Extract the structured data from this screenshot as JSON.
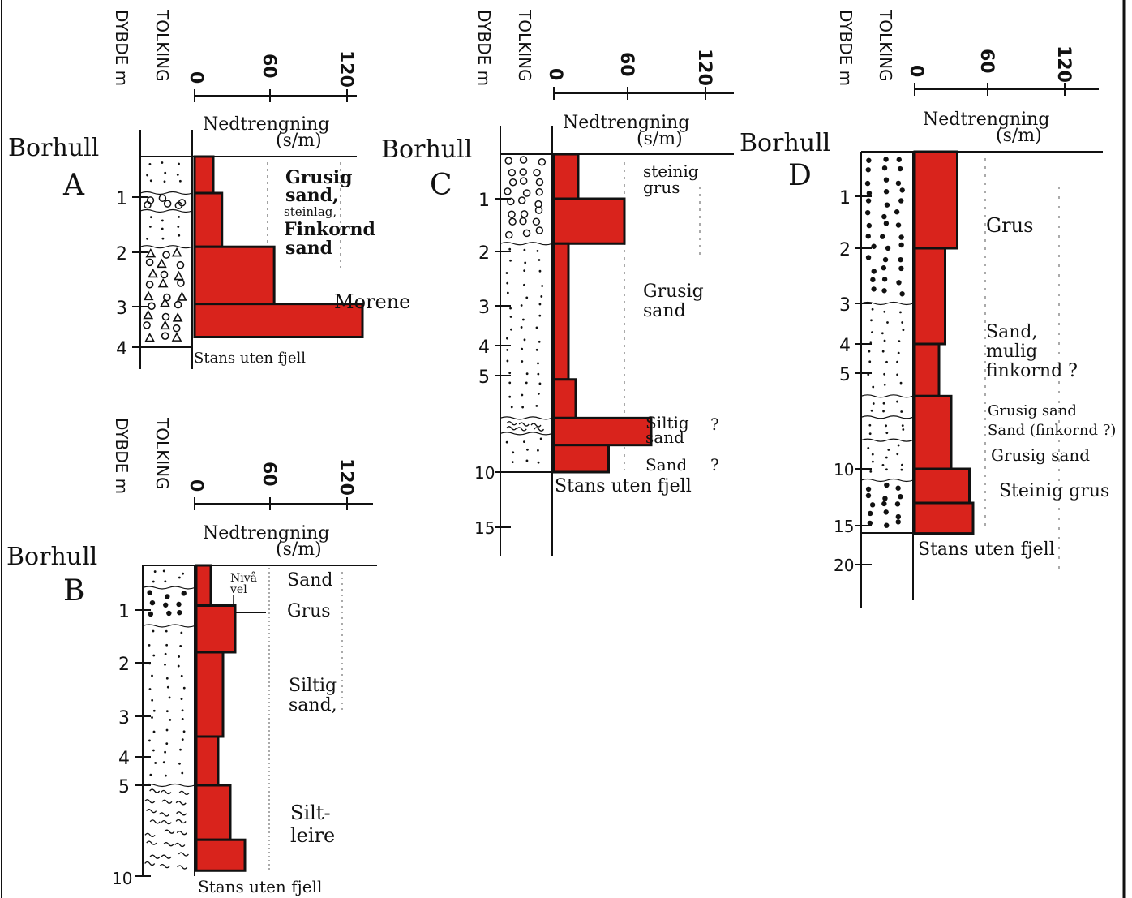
{
  "colors": {
    "ink": "#111111",
    "red": "#d9231c",
    "paper": "#ffffff"
  },
  "common": {
    "col_depth": "DYBDE m",
    "col_interp": "TOLKING",
    "ticks": [
      "0",
      "60",
      "120"
    ],
    "pen_title": "Nedtrengning",
    "pen_unit": "(s/m)",
    "hole_label": "Borhull"
  },
  "holes": [
    {
      "id": "A",
      "depth_ticks": [
        "1",
        "2",
        "3",
        "4"
      ],
      "max_depth": 4,
      "layers": [
        {
          "label": "Grusig sand",
          "pattern": "dots",
          "top": 0,
          "bottom": 0.9
        },
        {
          "label": "steinlag",
          "pattern": "stones",
          "top": 0.9,
          "bottom": 1.25
        },
        {
          "label": "Finkornd sand",
          "pattern": "dots",
          "top": 1.25,
          "bottom": 1.9
        },
        {
          "label": "Morene",
          "pattern": "moraine",
          "top": 1.9,
          "bottom": 4
        }
      ],
      "soundings": [
        {
          "d0": 0,
          "d1": 0.9,
          "v": 15
        },
        {
          "d0": 0.9,
          "d1": 1.9,
          "v": 22
        },
        {
          "d0": 1.9,
          "d1": 2.95,
          "v": 64
        },
        {
          "d0": 2.95,
          "d1": 3.75,
          "v": 135
        }
      ],
      "stop": "Stans uten fjell"
    },
    {
      "id": "B",
      "depth_ticks": [
        "1",
        "2",
        "3",
        "4",
        "5",
        "10"
      ],
      "max_depth": 10,
      "layers": [
        {
          "label": "Sand",
          "pattern": "dots",
          "top": 0,
          "bottom": 0.5
        },
        {
          "label": "Grus",
          "pattern": "gravel",
          "top": 0.5,
          "bottom": 1.3
        },
        {
          "label": "Siltig sand",
          "pattern": "dots",
          "top": 1.3,
          "bottom": 5
        },
        {
          "label": "Silt-leire",
          "pattern": "silt",
          "top": 5,
          "bottom": 10
        }
      ],
      "water": {
        "label": "Nivå vel",
        "depth": 0.85
      },
      "soundings": [
        {
          "d0": 0,
          "d1": 0.9,
          "v": 12
        },
        {
          "d0": 0.9,
          "d1": 1.8,
          "v": 32
        },
        {
          "d0": 1.8,
          "d1": 3.5,
          "v": 22
        },
        {
          "d0": 3.5,
          "d1": 5,
          "v": 18
        },
        {
          "d0": 5,
          "d1": 8,
          "v": 28
        },
        {
          "d0": 8,
          "d1": 9.7,
          "v": 40
        }
      ],
      "stop": "Stans uten fjell"
    },
    {
      "id": "C",
      "depth_ticks": [
        "1",
        "2",
        "3",
        "4",
        "5",
        "10",
        "15"
      ],
      "max_depth": 15,
      "layers": [
        {
          "label": "steinig grus",
          "pattern": "stones",
          "top": 0,
          "bottom": 1.85
        },
        {
          "label": "Grusig sand",
          "pattern": "dots",
          "top": 1.85,
          "bottom": 7.2
        },
        {
          "label": "Siltig sand ?",
          "pattern": "silt",
          "top": 7.2,
          "bottom": 8
        },
        {
          "label": "Sand ?",
          "pattern": "dots",
          "top": 8,
          "bottom": 10
        }
      ],
      "soundings": [
        {
          "d0": 0,
          "d1": 1.0,
          "v": 20
        },
        {
          "d0": 1.0,
          "d1": 1.85,
          "v": 58
        },
        {
          "d0": 1.85,
          "d1": 5.2,
          "v": 12
        },
        {
          "d0": 5.2,
          "d1": 7.2,
          "v": 18
        },
        {
          "d0": 7.2,
          "d1": 8.6,
          "v": 80
        },
        {
          "d0": 8.6,
          "d1": 10,
          "v": 45
        }
      ],
      "stop": "Stans uten fjell"
    },
    {
      "id": "D",
      "depth_ticks": [
        "1",
        "2",
        "3",
        "4",
        "5",
        "10",
        "15",
        "20"
      ],
      "max_depth": 20,
      "layers": [
        {
          "label": "Grus",
          "pattern": "gravel",
          "top": 0,
          "bottom": 3
        },
        {
          "label": "Sand, mulig finkornd ?",
          "pattern": "dots",
          "top": 3,
          "bottom": 6.2
        },
        {
          "label": "Grusig sand",
          "pattern": "dots",
          "top": 6.2,
          "bottom": 7.3
        },
        {
          "label": "Sand (finkornd ?)",
          "pattern": "dots",
          "top": 7.3,
          "bottom": 8.5
        },
        {
          "label": "Grusig sand",
          "pattern": "dots",
          "top": 8.5,
          "bottom": 11
        },
        {
          "label": "Steinig grus",
          "pattern": "gravel",
          "top": 11,
          "bottom": 16
        }
      ],
      "soundings": [
        {
          "d0": 0,
          "d1": 2,
          "v": 35
        },
        {
          "d0": 2,
          "d1": 4,
          "v": 25
        },
        {
          "d0": 4,
          "d1": 6.2,
          "v": 20
        },
        {
          "d0": 6.2,
          "d1": 10,
          "v": 30
        },
        {
          "d0": 10,
          "d1": 13,
          "v": 45
        },
        {
          "d0": 13,
          "d1": 16,
          "v": 48
        }
      ],
      "stop": "Stans uten fjell"
    }
  ],
  "labels": {
    "A": {
      "l1": "Grusig",
      "l2": "sand,",
      "l3": "steinlag,",
      "l4": "Finkornd",
      "l5": "sand",
      "l6": "Morene"
    },
    "B": {
      "l1": "Sand",
      "l2": "Grus",
      "l3": "Siltig",
      "l4": "sand,",
      "l5": "Silt-",
      "l6": "leire",
      "n1": "Nivå",
      "n2": "vel"
    },
    "C": {
      "l1": "steinig",
      "l2": "grus",
      "l3": "Grusig",
      "l4": "sand",
      "l5": "Siltig",
      "l6": "sand",
      "l7": "Sand",
      "q": "?"
    },
    "D": {
      "l1": "Grus",
      "l2": "Sand,",
      "l3": "mulig",
      "l4": "finkornd ?",
      "l5": "Grusig sand",
      "l6": "Sand (finkornd ?)",
      "l7": "Grusig sand",
      "l8": "Steinig grus"
    }
  }
}
